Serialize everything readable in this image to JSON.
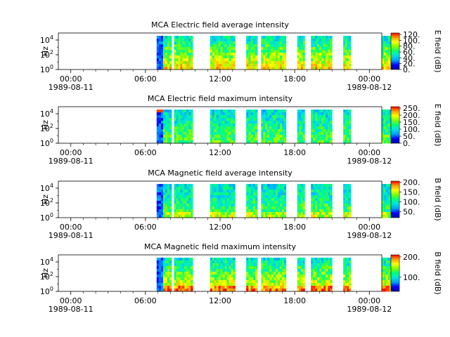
{
  "chart_data": [
    {
      "type": "heatmap",
      "title": "MCA  Electric field average intensity",
      "ylabel": "Hz",
      "colorbar_label": "E field (dB)",
      "colorbar_ticks": [
        "0.",
        "20.",
        "40.",
        "60.",
        "80.",
        "100.",
        "120."
      ],
      "colorbar_range": [
        0,
        125
      ],
      "yscale": "log",
      "y_ticks": [
        "10^0",
        "10^2",
        "10^4"
      ],
      "x_ticks": [
        {
          "time": "00:00",
          "date": "1989-08-11"
        },
        {
          "time": "06:00",
          "date": ""
        },
        {
          "time": "12:00",
          "date": ""
        },
        {
          "time": "18:00",
          "date": ""
        },
        {
          "time": "00:00",
          "date": "1989-08-12"
        }
      ],
      "x_range_hours": [
        -1,
        25
      ],
      "data_intervals_hours": [
        [
          6.9,
          8.1
        ],
        [
          8.3,
          9.8
        ],
        [
          11.2,
          13.2
        ],
        [
          14.1,
          15.0
        ],
        [
          15.3,
          17.3
        ],
        [
          18.2,
          18.8
        ],
        [
          19.3,
          21.0
        ],
        [
          21.9,
          22.5
        ],
        [
          25.0,
          25.8
        ]
      ],
      "low_band_level": "high",
      "colormap": [
        "#0000a0",
        "#0000ff",
        "#00a0ff",
        "#00e0e0",
        "#00ff80",
        "#80ff00",
        "#ffff00",
        "#ffa000",
        "#ff0000"
      ]
    },
    {
      "type": "heatmap",
      "title": "MCA  Electric field maximum intensity",
      "ylabel": "Hz",
      "colorbar_label": "E field (dB)",
      "colorbar_ticks": [
        "0.",
        "50.",
        "100.",
        "150.",
        "200.",
        "250."
      ],
      "colorbar_range": [
        0,
        260
      ],
      "yscale": "log",
      "y_ticks": [
        "10^0",
        "10^2",
        "10^4"
      ],
      "x_ticks": [
        {
          "time": "00:00",
          "date": "1989-08-11"
        },
        {
          "time": "06:00",
          "date": ""
        },
        {
          "time": "12:00",
          "date": ""
        },
        {
          "time": "18:00",
          "date": ""
        },
        {
          "time": "00:00",
          "date": "1989-08-12"
        }
      ],
      "x_range_hours": [
        -1,
        25
      ],
      "data_intervals_hours": [
        [
          6.9,
          8.1
        ],
        [
          8.3,
          9.8
        ],
        [
          11.2,
          13.2
        ],
        [
          14.1,
          15.0
        ],
        [
          15.3,
          17.3
        ],
        [
          18.2,
          18.8
        ],
        [
          19.3,
          21.0
        ],
        [
          21.9,
          22.5
        ],
        [
          25.0,
          25.8
        ]
      ],
      "low_band_level": "mid",
      "colormap": [
        "#0000a0",
        "#0000ff",
        "#00a0ff",
        "#00e0e0",
        "#00ff80",
        "#80ff00",
        "#ffff00",
        "#ffa000",
        "#ff0000"
      ]
    },
    {
      "type": "heatmap",
      "title": "MCA  Magnetic field average intensity",
      "ylabel": "Hz",
      "colorbar_label": "B field (dB)",
      "colorbar_ticks": [
        "50.",
        "100.",
        "150.",
        "200."
      ],
      "colorbar_range": [
        20,
        205
      ],
      "yscale": "log",
      "y_ticks": [
        "10^0",
        "10^2",
        "10^4"
      ],
      "x_ticks": [
        {
          "time": "00:00",
          "date": "1989-08-11"
        },
        {
          "time": "06:00",
          "date": ""
        },
        {
          "time": "12:00",
          "date": ""
        },
        {
          "time": "18:00",
          "date": ""
        },
        {
          "time": "00:00",
          "date": "1989-08-12"
        }
      ],
      "x_range_hours": [
        -1,
        25
      ],
      "data_intervals_hours": [
        [
          6.9,
          8.1
        ],
        [
          8.3,
          9.8
        ],
        [
          11.2,
          13.2
        ],
        [
          14.1,
          15.0
        ],
        [
          15.3,
          17.3
        ],
        [
          18.2,
          18.8
        ],
        [
          19.3,
          21.0
        ],
        [
          21.9,
          22.5
        ],
        [
          25.0,
          25.8
        ]
      ],
      "low_band_level": "mid",
      "colormap": [
        "#0000a0",
        "#0000ff",
        "#00a0ff",
        "#00e0e0",
        "#00ff80",
        "#80ff00",
        "#ffff00",
        "#ffa000",
        "#ff0000"
      ]
    },
    {
      "type": "heatmap",
      "title": "MCA  Magnetic field maximum intensity",
      "ylabel": "Hz",
      "colorbar_label": "B field (dB)",
      "colorbar_ticks": [
        "100.",
        "200."
      ],
      "colorbar_range": [
        30,
        210
      ],
      "yscale": "log",
      "y_ticks": [
        "10^0",
        "10^2",
        "10^4"
      ],
      "x_ticks": [
        {
          "time": "00:00",
          "date": "1989-08-11"
        },
        {
          "time": "06:00",
          "date": ""
        },
        {
          "time": "12:00",
          "date": ""
        },
        {
          "time": "18:00",
          "date": ""
        },
        {
          "time": "00:00",
          "date": "1989-08-12"
        }
      ],
      "x_range_hours": [
        -1,
        25
      ],
      "data_intervals_hours": [
        [
          6.9,
          8.1
        ],
        [
          8.3,
          9.8
        ],
        [
          11.2,
          13.2
        ],
        [
          14.1,
          15.0
        ],
        [
          15.3,
          17.3
        ],
        [
          18.2,
          18.8
        ],
        [
          19.3,
          21.0
        ],
        [
          21.9,
          22.5
        ],
        [
          25.0,
          25.8
        ]
      ],
      "low_band_level": "high",
      "colormap": [
        "#0000a0",
        "#0000ff",
        "#00a0ff",
        "#00e0e0",
        "#00ff80",
        "#80ff00",
        "#ffff00",
        "#ffa000",
        "#ff0000"
      ]
    }
  ]
}
